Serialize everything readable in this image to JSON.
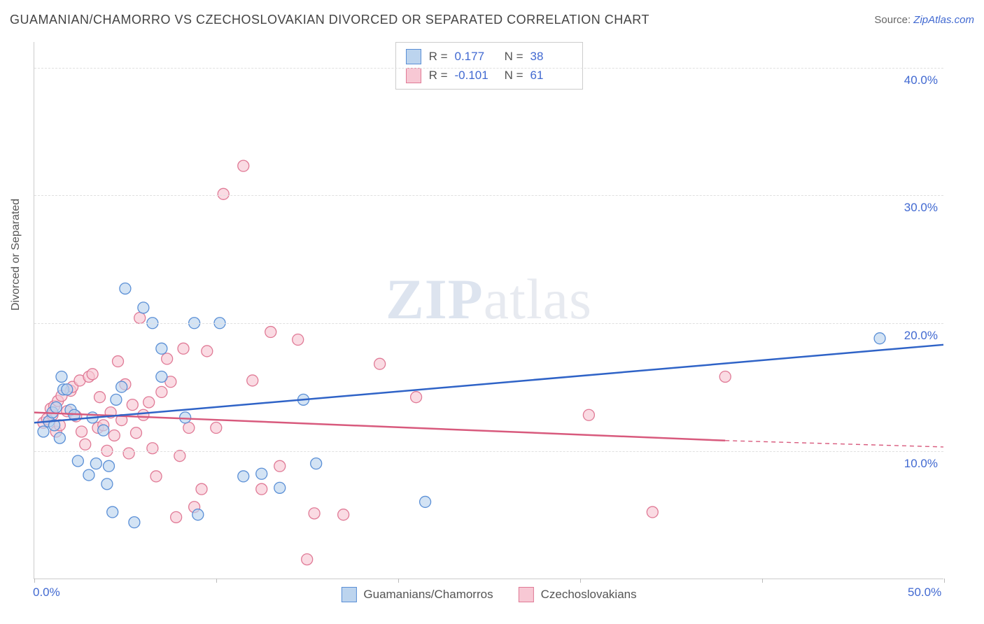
{
  "title": "GUAMANIAN/CHAMORRO VS CZECHOSLOVAKIAN DIVORCED OR SEPARATED CORRELATION CHART",
  "source_label": "Source: ",
  "source_link": "ZipAtlas.com",
  "y_axis_label": "Divorced or Separated",
  "watermark": {
    "bold": "ZIP",
    "rest": "atlas"
  },
  "xlim": [
    0,
    50
  ],
  "ylim": [
    0,
    42
  ],
  "x_ticks": [
    0,
    10,
    20,
    30,
    40,
    50
  ],
  "x_tick_labels": {
    "0": "0.0%",
    "50": "50.0%"
  },
  "y_ticks": [
    10,
    20,
    30,
    40
  ],
  "y_tick_labels": {
    "10": "10.0%",
    "20": "20.0%",
    "30": "30.0%",
    "40": "40.0%"
  },
  "series": [
    {
      "key": "guamanians",
      "label": "Guamanians/Chamorros",
      "fill": "#bcd4ee",
      "stroke": "#5a8fd6",
      "line_color": "#2f63c7",
      "r_value": "0.177",
      "n_value": "38",
      "regression": {
        "x1": 0,
        "y1": 12.2,
        "x2": 50,
        "y2": 18.3
      },
      "points": [
        [
          0.5,
          11.5
        ],
        [
          0.8,
          12.3
        ],
        [
          1.0,
          13.0
        ],
        [
          1.1,
          12.0
        ],
        [
          1.2,
          13.4
        ],
        [
          1.4,
          11.0
        ],
        [
          1.6,
          14.8
        ],
        [
          1.8,
          14.8
        ],
        [
          2.0,
          13.2
        ],
        [
          1.5,
          15.8
        ],
        [
          2.2,
          12.8
        ],
        [
          2.4,
          9.2
        ],
        [
          3.0,
          8.1
        ],
        [
          3.2,
          12.6
        ],
        [
          3.4,
          9.0
        ],
        [
          3.8,
          11.6
        ],
        [
          4.0,
          7.4
        ],
        [
          4.1,
          8.8
        ],
        [
          4.3,
          5.2
        ],
        [
          4.5,
          14.0
        ],
        [
          4.8,
          15.0
        ],
        [
          5.0,
          22.7
        ],
        [
          5.5,
          4.4
        ],
        [
          6.0,
          21.2
        ],
        [
          6.5,
          20.0
        ],
        [
          7.0,
          18.0
        ],
        [
          7.0,
          15.8
        ],
        [
          8.3,
          12.6
        ],
        [
          8.8,
          20.0
        ],
        [
          9.0,
          5.0
        ],
        [
          10.2,
          20.0
        ],
        [
          11.5,
          8.0
        ],
        [
          12.5,
          8.2
        ],
        [
          13.5,
          7.1
        ],
        [
          14.8,
          14.0
        ],
        [
          15.5,
          9.0
        ],
        [
          21.5,
          6.0
        ],
        [
          46.5,
          18.8
        ]
      ]
    },
    {
      "key": "czechoslovakians",
      "label": "Czechoslovakians",
      "fill": "#f7c8d4",
      "stroke": "#e07a96",
      "line_color": "#d85a7d",
      "r_value": "-0.101",
      "n_value": "61",
      "regression": {
        "x1": 0,
        "y1": 13.0,
        "x2": 38,
        "y2": 10.8
      },
      "regression_dashed": {
        "x1": 38,
        "y1": 10.8,
        "x2": 50,
        "y2": 10.3
      },
      "points": [
        [
          0.5,
          12.2
        ],
        [
          0.7,
          12.5
        ],
        [
          0.9,
          13.3
        ],
        [
          1.0,
          12.8
        ],
        [
          1.1,
          13.5
        ],
        [
          1.2,
          11.5
        ],
        [
          1.3,
          13.9
        ],
        [
          1.4,
          12.0
        ],
        [
          1.5,
          14.3
        ],
        [
          1.8,
          13.1
        ],
        [
          2.0,
          14.7
        ],
        [
          2.1,
          15.0
        ],
        [
          2.3,
          12.7
        ],
        [
          2.5,
          15.5
        ],
        [
          2.6,
          11.5
        ],
        [
          2.8,
          10.5
        ],
        [
          3.0,
          15.8
        ],
        [
          3.2,
          16.0
        ],
        [
          3.5,
          11.8
        ],
        [
          3.6,
          14.2
        ],
        [
          3.8,
          12.0
        ],
        [
          4.0,
          10.0
        ],
        [
          4.2,
          13.0
        ],
        [
          4.4,
          11.2
        ],
        [
          4.6,
          17.0
        ],
        [
          4.8,
          12.4
        ],
        [
          5.0,
          15.2
        ],
        [
          5.2,
          9.8
        ],
        [
          5.4,
          13.6
        ],
        [
          5.6,
          11.4
        ],
        [
          5.8,
          20.4
        ],
        [
          6.0,
          12.8
        ],
        [
          6.3,
          13.8
        ],
        [
          6.5,
          10.2
        ],
        [
          6.7,
          8.0
        ],
        [
          7.0,
          14.6
        ],
        [
          7.3,
          17.2
        ],
        [
          7.5,
          15.4
        ],
        [
          7.8,
          4.8
        ],
        [
          8.0,
          9.6
        ],
        [
          8.2,
          18.0
        ],
        [
          8.5,
          11.8
        ],
        [
          8.8,
          5.6
        ],
        [
          9.2,
          7.0
        ],
        [
          9.5,
          17.8
        ],
        [
          10.0,
          11.8
        ],
        [
          10.4,
          30.1
        ],
        [
          11.5,
          32.3
        ],
        [
          12.0,
          15.5
        ],
        [
          12.5,
          7.0
        ],
        [
          13.0,
          19.3
        ],
        [
          13.5,
          8.8
        ],
        [
          14.5,
          18.7
        ],
        [
          15.0,
          1.5
        ],
        [
          15.4,
          5.1
        ],
        [
          17.0,
          5.0
        ],
        [
          19.0,
          16.8
        ],
        [
          30.5,
          12.8
        ],
        [
          34.0,
          5.2
        ],
        [
          38.0,
          15.8
        ],
        [
          21.0,
          14.2
        ]
      ]
    }
  ],
  "marker": {
    "radius": 8,
    "fill_opacity": 0.65,
    "stroke_width": 1.3
  },
  "line_width": 2.5,
  "dashed_line_width": 1.4,
  "background_color": "#ffffff",
  "grid_color": "#e0e0e0"
}
